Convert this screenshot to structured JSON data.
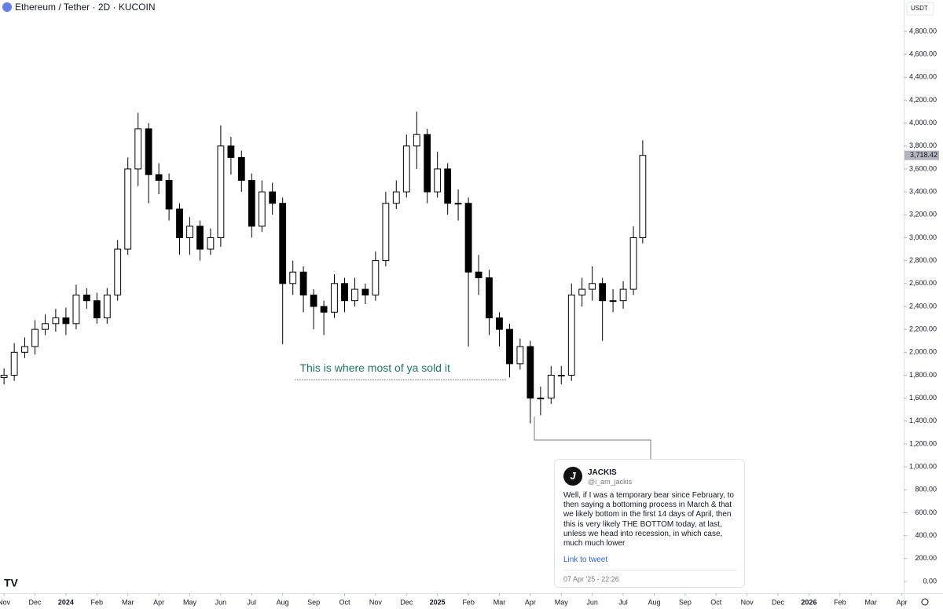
{
  "chart_data": {
    "type": "candlestick",
    "title": "Ethereum / Tether · 2D · KUCOIN",
    "currency": "USDT",
    "up_color": "#ffffff",
    "down_color": "#000000",
    "wick_color": "#000000",
    "x": [
      0,
      0.33,
      0.67,
      1,
      1.33,
      1.67,
      2,
      2.33,
      2.67,
      3,
      3.33,
      3.67,
      4,
      4.33,
      4.67,
      5,
      5.33,
      5.67,
      6,
      6.33,
      6.67,
      7,
      7.33,
      7.67,
      8,
      8.33,
      8.67,
      9,
      9.33,
      9.67,
      10,
      10.33,
      10.67,
      11,
      11.33,
      11.67,
      12,
      12.33,
      12.67,
      13,
      13.33,
      13.67,
      14,
      14.33,
      14.67,
      15,
      15.33,
      15.67,
      16,
      16.33,
      16.67,
      17,
      17.33,
      17.67,
      18,
      18.33,
      18.67,
      19,
      19.33,
      19.67,
      20,
      20.33,
      20.63
    ],
    "open": [
      1780,
      1800,
      2000,
      2050,
      2200,
      2250,
      2300,
      2250,
      2500,
      2450,
      2300,
      2500,
      2900,
      3600,
      3950,
      3550,
      3500,
      3250,
      3000,
      3100,
      2900,
      3000,
      3800,
      3700,
      3500,
      3100,
      3400,
      3300,
      2600,
      2700,
      2500,
      2400,
      2350,
      2600,
      2450,
      2550,
      2500,
      2800,
      3300,
      3400,
      3800,
      3900,
      3400,
      3600,
      3300,
      3300,
      2700,
      2650,
      2300,
      2200,
      1900,
      2050,
      1600,
      1600,
      1800,
      1800,
      2500,
      2550,
      2600,
      2450,
      2450,
      2550,
      3000
    ],
    "high": [
      1860,
      2080,
      2130,
      2280,
      2330,
      2380,
      2390,
      2590,
      2560,
      2520,
      2560,
      2980,
      3700,
      4090,
      4000,
      3650,
      3560,
      3300,
      3180,
      3150,
      3080,
      3980,
      3880,
      3760,
      3560,
      3500,
      3480,
      3350,
      2800,
      2750,
      2550,
      2450,
      2680,
      2650,
      2650,
      2600,
      2880,
      3400,
      3500,
      3900,
      4100,
      3950,
      3750,
      3650,
      3420,
      3350,
      2850,
      2720,
      2350,
      2250,
      2120,
      2100,
      1700,
      1880,
      1880,
      2600,
      2650,
      2750,
      2650,
      2550,
      2620,
      3100,
      3850
    ],
    "low": [
      1720,
      1750,
      1950,
      1980,
      2150,
      2180,
      2150,
      2200,
      2380,
      2250,
      2250,
      2450,
      2850,
      3450,
      3300,
      3380,
      3150,
      2850,
      2850,
      2800,
      2850,
      2920,
      3550,
      3400,
      3000,
      3050,
      3200,
      2070,
      2500,
      2350,
      2200,
      2150,
      2300,
      2350,
      2400,
      2420,
      2450,
      2750,
      3250,
      3350,
      3600,
      3300,
      3350,
      3200,
      3150,
      2050,
      2500,
      2150,
      2050,
      1780,
      1850,
      1380,
      1450,
      1550,
      1720,
      1750,
      2400,
      2450,
      2100,
      2350,
      2380,
      2500,
      2950
    ],
    "close": [
      1800,
      2000,
      2050,
      2200,
      2250,
      2300,
      2250,
      2500,
      2450,
      2300,
      2500,
      2900,
      3600,
      3950,
      3550,
      3500,
      3250,
      3000,
      3100,
      2900,
      3000,
      3800,
      3700,
      3500,
      3100,
      3400,
      3300,
      2600,
      2700,
      2500,
      2400,
      2350,
      2600,
      2450,
      2550,
      2500,
      2800,
      3300,
      3400,
      3800,
      3900,
      3400,
      3600,
      3300,
      3300,
      2700,
      2650,
      2300,
      2200,
      1900,
      2050,
      1600,
      1600,
      1800,
      1800,
      2500,
      2550,
      2600,
      2450,
      2450,
      2550,
      3000,
      3718.42
    ],
    "xlim": [
      -0.13,
      29.06
    ],
    "ylim": [
      -103,
      5074
    ],
    "xticks": [
      {
        "value": 0,
        "label": "Nov"
      },
      {
        "value": 1,
        "label": "Dec"
      },
      {
        "value": 2,
        "label": "2024"
      },
      {
        "value": 3,
        "label": "Feb"
      },
      {
        "value": 4,
        "label": "Mar"
      },
      {
        "value": 5,
        "label": "Apr"
      },
      {
        "value": 6,
        "label": "May"
      },
      {
        "value": 7,
        "label": "Jun"
      },
      {
        "value": 8,
        "label": "Jul"
      },
      {
        "value": 9,
        "label": "Aug"
      },
      {
        "value": 10,
        "label": "Sep"
      },
      {
        "value": 11,
        "label": "Oct"
      },
      {
        "value": 12,
        "label": "Nov"
      },
      {
        "value": 13,
        "label": "Dec"
      },
      {
        "value": 14,
        "label": "2025"
      },
      {
        "value": 15,
        "label": "Feb"
      },
      {
        "value": 16,
        "label": "Mar"
      },
      {
        "value": 17,
        "label": "Apr"
      },
      {
        "value": 18,
        "label": "May"
      },
      {
        "value": 19,
        "label": "Jun"
      },
      {
        "value": 20,
        "label": "Jul"
      },
      {
        "value": 21,
        "label": "Aug"
      },
      {
        "value": 22,
        "label": "Sep"
      },
      {
        "value": 23,
        "label": "Oct"
      },
      {
        "value": 24,
        "label": "Nov"
      },
      {
        "value": 25,
        "label": "Dec"
      },
      {
        "value": 26,
        "label": "2026"
      },
      {
        "value": 27,
        "label": "Feb"
      },
      {
        "value": 28,
        "label": "Mar"
      },
      {
        "value": 29,
        "label": "Apr"
      }
    ],
    "yticks": [
      {
        "value": 0,
        "label": "0.00"
      },
      {
        "value": 200,
        "label": "200.00"
      },
      {
        "value": 400,
        "label": "400.00"
      },
      {
        "value": 600,
        "label": "600.00"
      },
      {
        "value": 800,
        "label": "800.00"
      },
      {
        "value": 1000,
        "label": "1,000.00"
      },
      {
        "value": 1200,
        "label": "1,200.00"
      },
      {
        "value": 1400,
        "label": "1,400.00"
      },
      {
        "value": 1600,
        "label": "1,600.00"
      },
      {
        "value": 1800,
        "label": "1,800.00"
      },
      {
        "value": 2000,
        "label": "2,000.00"
      },
      {
        "value": 2200,
        "label": "2,200.00"
      },
      {
        "value": 2400,
        "label": "2,400.00"
      },
      {
        "value": 2600,
        "label": "2,600.00"
      },
      {
        "value": 2800,
        "label": "2,800.00"
      },
      {
        "value": 3000,
        "label": "3,000.00"
      },
      {
        "value": 3200,
        "label": "3,200.00"
      },
      {
        "value": 3400,
        "label": "3,400.00"
      },
      {
        "value": 3600,
        "label": "3,600.00"
      },
      {
        "value": 3800,
        "label": "3,800.00"
      },
      {
        "value": 4000,
        "label": "4,000.00"
      },
      {
        "value": 4200,
        "label": "4,200.00"
      },
      {
        "value": 4400,
        "label": "4,400.00"
      },
      {
        "value": 4600,
        "label": "4,600.00"
      },
      {
        "value": 4800,
        "label": "4,800.00"
      }
    ],
    "last_price": {
      "value": 3718.42,
      "label": "3,718.42"
    },
    "annotation": {
      "text": "This is where most of ya sold it",
      "level": 1760,
      "x_start": 9.4,
      "x_end": 16.25,
      "color": "#1b7a5a"
    },
    "tweet": {
      "name": "JACKIS",
      "handle": "@i_am_jackis",
      "text": "Well, if I was a temporary bear since February, to then saying a bottoming process in March & that we likely bottom in the first 14 days of April, then this is very likely THE BOTTOM today, at last, unless we head into recession, in which case, much much lower",
      "link": "Link to tweet",
      "date": "07 Apr '25 - 22:26"
    }
  }
}
